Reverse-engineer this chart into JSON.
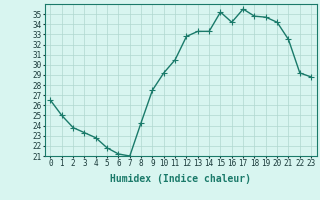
{
  "x": [
    0,
    1,
    2,
    3,
    4,
    5,
    6,
    7,
    8,
    9,
    10,
    11,
    12,
    13,
    14,
    15,
    16,
    17,
    18,
    19,
    20,
    21,
    22,
    23
  ],
  "y": [
    26.5,
    25.0,
    23.8,
    23.3,
    22.8,
    21.8,
    21.2,
    21.0,
    24.3,
    27.5,
    29.2,
    30.5,
    32.8,
    33.3,
    33.3,
    35.2,
    34.2,
    35.5,
    34.8,
    34.7,
    34.2,
    32.5,
    29.2,
    28.8
  ],
  "line_color": "#1a7a6a",
  "marker": "+",
  "marker_color": "#1a7a6a",
  "bg_color": "#d8f5f0",
  "grid_color": "#b0d8d0",
  "xlabel": "Humidex (Indice chaleur)",
  "ylim": [
    21,
    36
  ],
  "xlim": [
    -0.5,
    23.5
  ],
  "yticks": [
    21,
    22,
    23,
    24,
    25,
    26,
    27,
    28,
    29,
    30,
    31,
    32,
    33,
    34,
    35
  ],
  "xticks": [
    0,
    1,
    2,
    3,
    4,
    5,
    6,
    7,
    8,
    9,
    10,
    11,
    12,
    13,
    14,
    15,
    16,
    17,
    18,
    19,
    20,
    21,
    22,
    23
  ],
  "tick_label_fontsize": 5.5,
  "xlabel_fontsize": 7,
  "line_width": 1.0,
  "marker_size": 4
}
